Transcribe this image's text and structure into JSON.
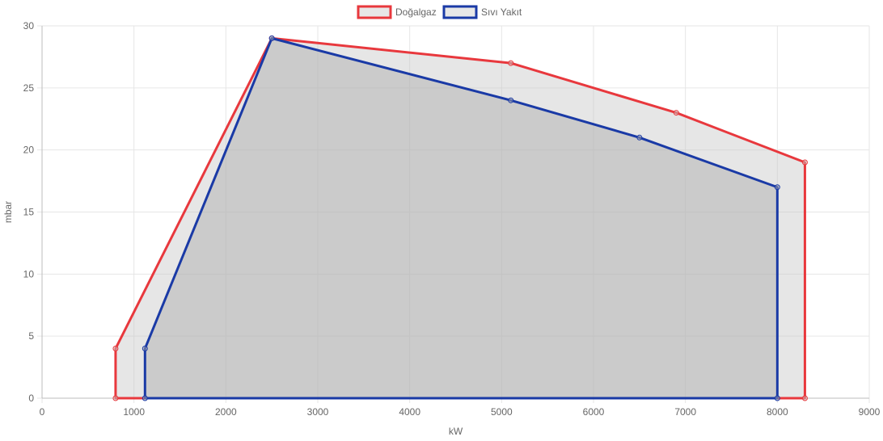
{
  "chart_data": {
    "type": "area",
    "xlabel": "kW",
    "ylabel": "mbar",
    "xlim": [
      0,
      9000
    ],
    "ylim": [
      0,
      30
    ],
    "x_ticks": [
      0,
      1000,
      2000,
      3000,
      4000,
      5000,
      6000,
      7000,
      8000,
      9000
    ],
    "y_ticks": [
      0,
      5,
      10,
      15,
      20,
      25,
      30
    ],
    "grid": true,
    "legend_position": "top-center",
    "series": [
      {
        "name": "Doğalgaz",
        "color": "#e8383d",
        "fill": "rgba(200,200,200,0.45)",
        "points": [
          [
            800,
            0
          ],
          [
            800,
            4
          ],
          [
            2500,
            29
          ],
          [
            5100,
            27
          ],
          [
            6900,
            23
          ],
          [
            8300,
            19
          ],
          [
            8300,
            0
          ],
          [
            800,
            0
          ]
        ]
      },
      {
        "name": "Sıvı Yakıt",
        "color": "#1a3aa6",
        "fill": "rgba(170,170,170,0.45)",
        "points": [
          [
            1120,
            0
          ],
          [
            1120,
            4
          ],
          [
            2500,
            29
          ],
          [
            5100,
            24
          ],
          [
            6500,
            21
          ],
          [
            8000,
            17
          ],
          [
            8000,
            0
          ],
          [
            1120,
            0
          ]
        ]
      }
    ]
  }
}
